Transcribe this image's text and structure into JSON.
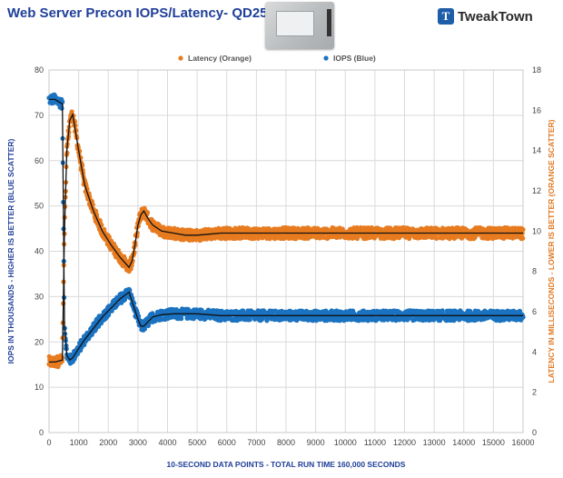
{
  "header": {
    "title": "Web Server Precon IOPS/Latency- QD256",
    "logo_text": "TweakTown",
    "logo_mark": "T"
  },
  "chart_data": {
    "type": "scatter",
    "x": [
      0,
      200,
      450,
      520,
      600,
      700,
      800,
      1000,
      1200,
      1500,
      1800,
      2100,
      2400,
      2700,
      2800,
      2900,
      3000,
      3100,
      3200,
      3350,
      3500,
      3800,
      4200,
      4600,
      5000,
      5400,
      5800,
      6200,
      7000,
      8000,
      9000,
      10000,
      11000,
      12000,
      13000,
      14000,
      15000,
      16000
    ],
    "xlim": [
      0,
      16000
    ],
    "xticks": [
      "0",
      "1000",
      "2000",
      "3000",
      "4000",
      "5000",
      "6000",
      "7000",
      "8000",
      "9000",
      "10000",
      "11000",
      "12000",
      "13000",
      "14000",
      "15000",
      "16000"
    ],
    "left_ylim": [
      0,
      80
    ],
    "left_yticks": [
      "0",
      "10",
      "20",
      "30",
      "40",
      "50",
      "60",
      "70",
      "80"
    ],
    "right_ylim": [
      0,
      18
    ],
    "right_yticks": [
      "0",
      "2",
      "4",
      "6",
      "8",
      "10",
      "12",
      "14",
      "16",
      "18"
    ],
    "xlabel": "10-SECOND  DATA POINTS - TOTAL RUN TIME 160,000  SECONDS",
    "ylabel_left": "IOPS IN THOUSANDS - HIGHER IS BETTER (BLUE SCATTER)",
    "ylabel_right": "LATENCY IN MILLISECONDS - LOWER IS BETTER (ORANGE SCATTER)",
    "grid": true,
    "legend_position": "top",
    "series": [
      {
        "name": "IOPS (Blue)",
        "axis": "left",
        "color": "#1a72c0",
        "values": [
          73.5,
          73.5,
          72.5,
          24,
          17,
          16,
          16.5,
          18.5,
          20.5,
          23,
          25.5,
          27.5,
          29.5,
          31,
          29,
          27,
          25,
          23.5,
          23.5,
          24.5,
          25.5,
          26,
          26.2,
          26.2,
          26.2,
          26,
          25.8,
          25.8,
          25.8,
          25.8,
          25.8,
          25.8,
          25.8,
          25.8,
          25.8,
          25.8,
          25.8,
          25.8
        ]
      },
      {
        "name": "Latency (Orange)",
        "axis": "right",
        "color": "#e77b1f",
        "values": [
          3.5,
          3.5,
          3.6,
          10,
          14,
          15.5,
          15.8,
          14,
          12.3,
          11,
          10,
          9.3,
          8.7,
          8.2,
          8.5,
          9.3,
          10.3,
          10.8,
          11,
          10.6,
          10.3,
          10,
          9.9,
          9.8,
          9.8,
          9.85,
          9.9,
          9.9,
          9.9,
          9.9,
          9.9,
          9.9,
          9.9,
          9.9,
          9.9,
          9.9,
          9.9,
          9.9
        ]
      }
    ]
  }
}
